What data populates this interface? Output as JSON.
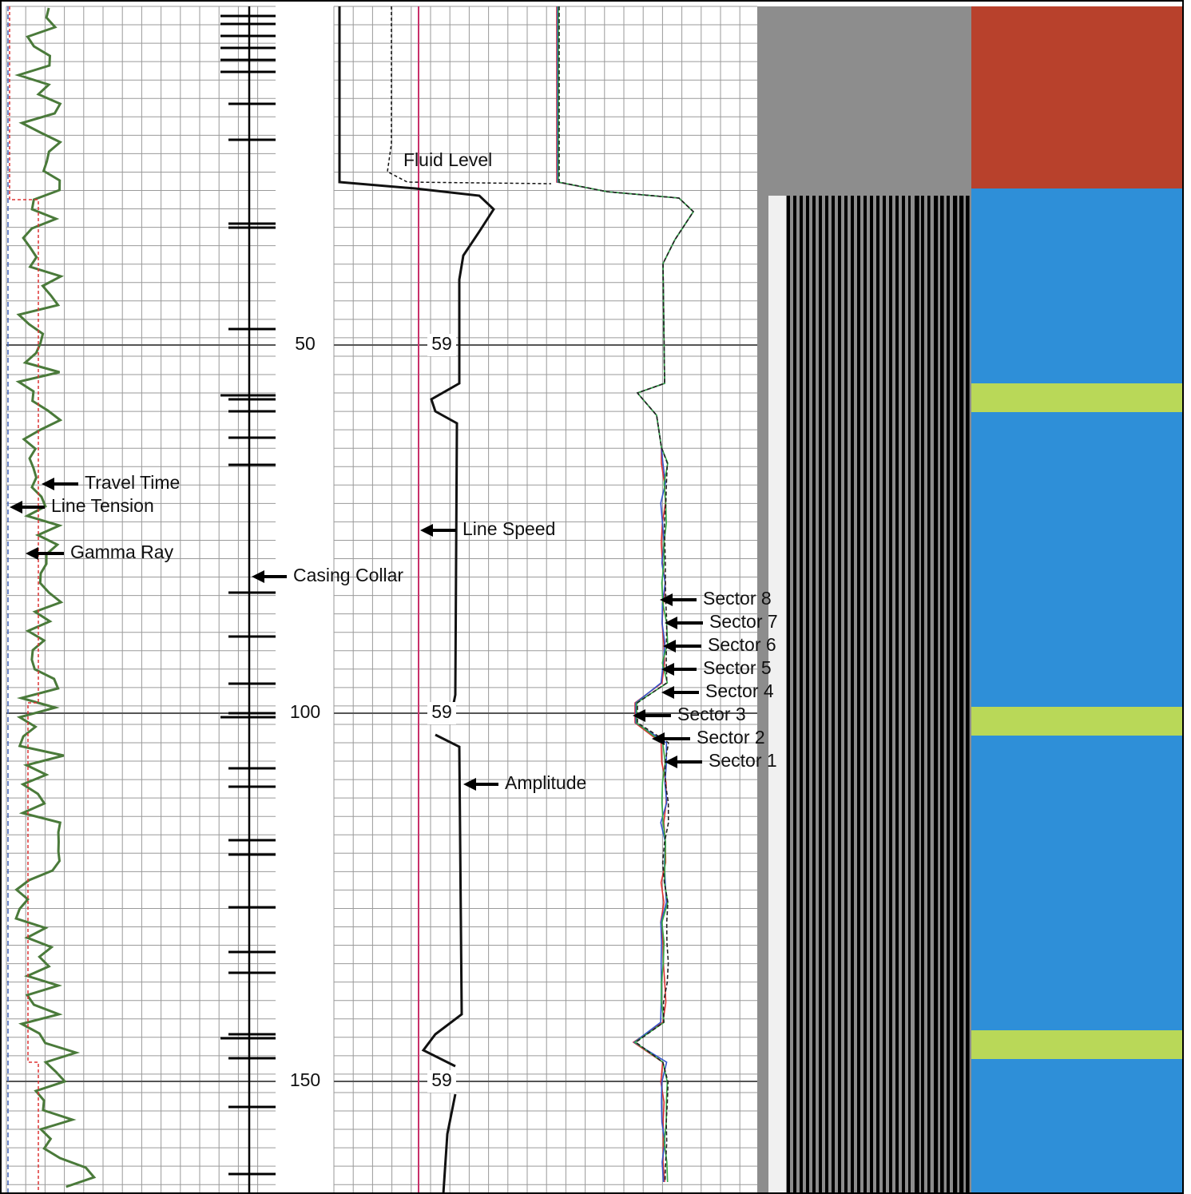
{
  "depth_labels": [
    50,
    100,
    150
  ],
  "line_speed_labels": [
    59,
    59,
    59
  ],
  "annotations": [
    "Fluid Level",
    "Travel Time",
    "Line Tension",
    "Gamma Ray",
    "Casing Collar",
    "Line Speed",
    "Amplitude",
    "Sector 8",
    "Sector 7",
    "Sector 6",
    "Sector 5",
    "Sector 4",
    "Sector 3",
    "Sector 2",
    "Sector 1"
  ]
}
